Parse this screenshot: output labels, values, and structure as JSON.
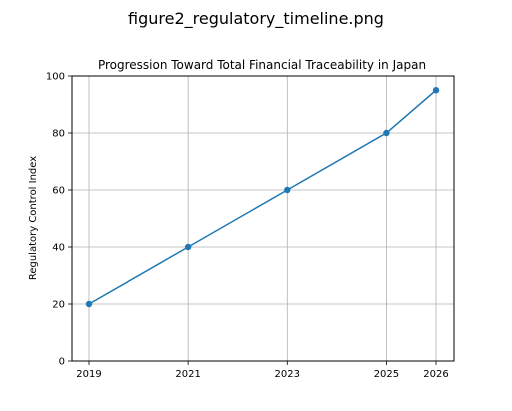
{
  "figure_title": "figure2_regulatory_timeline.png",
  "chart_data": {
    "type": "line",
    "title": "Progression Toward Total Financial Traceability in Japan",
    "xlabel": "",
    "ylabel": "Regulatory Control Index",
    "x": [
      "2019",
      "2021",
      "2023",
      "2025",
      "2026"
    ],
    "series": [
      {
        "values": [
          20,
          40,
          60,
          80,
          95
        ],
        "color": "#1f77b4"
      }
    ],
    "ylim": [
      0,
      100
    ],
    "yticks": [
      "0",
      "20",
      "40",
      "60",
      "80",
      "100"
    ],
    "grid": true,
    "markers": "circle"
  }
}
